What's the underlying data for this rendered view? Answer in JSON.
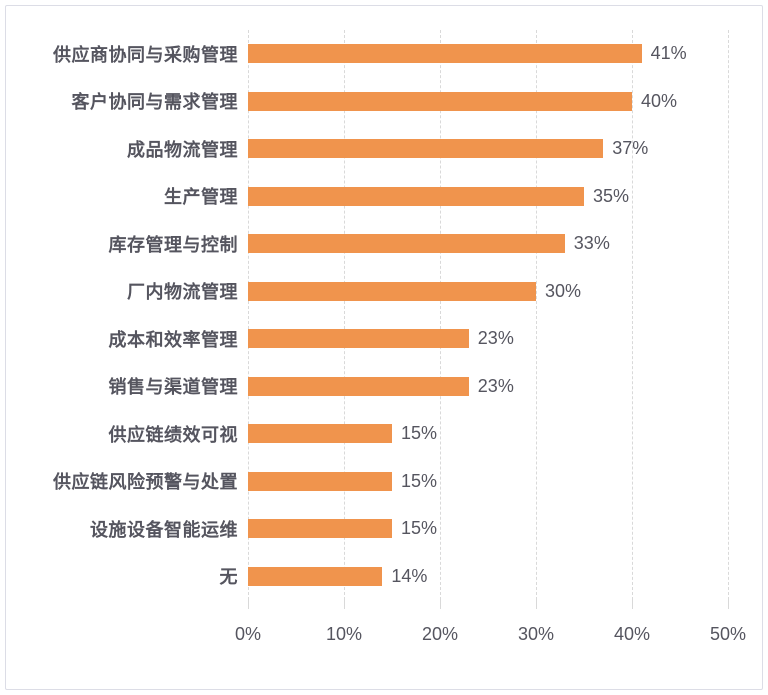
{
  "chart_data": {
    "type": "bar",
    "orientation": "horizontal",
    "title": "",
    "xlabel": "",
    "ylabel": "",
    "categories": [
      "供应商协同与采购管理",
      "客户协同与需求管理",
      "成品物流管理",
      "生产管理",
      "库存管理与控制",
      "厂内物流管理",
      "成本和效率管理",
      "销售与渠道管理",
      "供应链绩效可视",
      "供应链风险预警与处置",
      "设施设备智能运维",
      "无"
    ],
    "values": [
      41,
      40,
      37,
      35,
      33,
      30,
      23,
      23,
      15,
      15,
      15,
      14
    ],
    "value_labels": [
      "41%",
      "40%",
      "37%",
      "35%",
      "33%",
      "30%",
      "23%",
      "23%",
      "15%",
      "15%",
      "15%",
      "14%"
    ],
    "x_tick_values": [
      0,
      10,
      20,
      30,
      40,
      50
    ],
    "x_tick_labels": [
      "0%",
      "10%",
      "20%",
      "30%",
      "40%",
      "50%"
    ],
    "xlim": [
      0,
      50
    ],
    "grid": true,
    "grid_style": "dashed-vertical",
    "legend": false,
    "colors": {
      "bar": "#F0944D",
      "grid_line": "#D9D9D9",
      "text": "#55555F",
      "frame_border": "#DCDDE6",
      "background": "#FFFFFF"
    }
  }
}
